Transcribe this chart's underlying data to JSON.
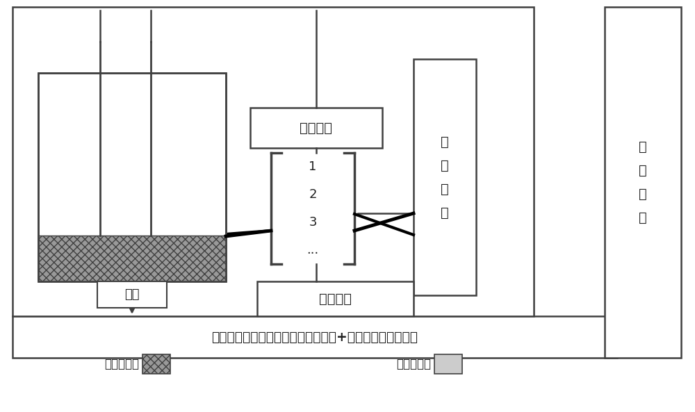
{
  "fig_width": 10.0,
  "fig_height": 5.93,
  "bg_color": "#ffffff",
  "title": "电化学发光检测系统（电化学工作站+超微弱发光分析仪）",
  "legend_sensor": "传感器阵列",
  "legend_water": "水溶液样品",
  "label_photon": "光子",
  "label_time_ctrl": "分时控制",
  "label_work_elec": "工作电极",
  "label_ref_elec": "参\n比\n电\n极",
  "label_aux_elec": "辅\n助\n电\n极",
  "electrodes": [
    "1",
    "2",
    "3",
    "..."
  ],
  "outline_color": "#404040",
  "text_color": "#202020",
  "water_color": "#cccccc",
  "sensor_color": "#888888"
}
